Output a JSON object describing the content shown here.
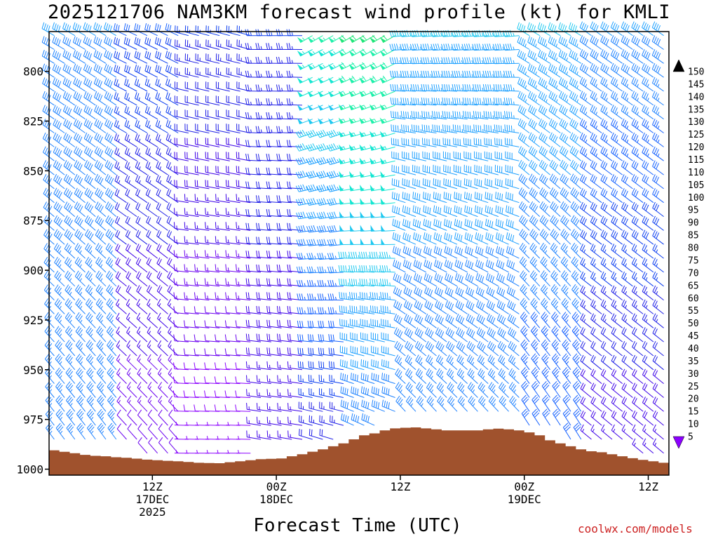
{
  "chart_data": {
    "type": "wind-profile",
    "title": "2025121706 NAM3KM forecast wind profile (kt) for KMLI",
    "xlabel": "Forecast Time (UTC)",
    "credit": "coolwx.com/models",
    "y_ticks": [
      800,
      825,
      850,
      875,
      900,
      925,
      950,
      975,
      1000
    ],
    "y_range_hpa": [
      780,
      1003
    ],
    "x_range_hours": [
      -4,
      56
    ],
    "x_ticks": [
      {
        "hour": 6,
        "lines": [
          "12Z",
          "17DEC",
          "2025"
        ]
      },
      {
        "hour": 18,
        "lines": [
          "00Z",
          "18DEC"
        ]
      },
      {
        "hour": 30,
        "lines": [
          "12Z"
        ]
      },
      {
        "hour": 42,
        "lines": [
          "00Z",
          "19DEC"
        ]
      },
      {
        "hour": 54,
        "lines": [
          "12Z"
        ]
      }
    ],
    "colorbar_levels": [
      5,
      10,
      15,
      20,
      25,
      30,
      35,
      40,
      45,
      50,
      55,
      60,
      65,
      70,
      75,
      80,
      85,
      90,
      95,
      100,
      105,
      110,
      115,
      120,
      125,
      130,
      135,
      140,
      145,
      150
    ],
    "colorbar_colors": [
      "#8c00ff",
      "#6a00f0",
      "#3c00e8",
      "#1e1ee6",
      "#0a3cf0",
      "#1460ff",
      "#1e82ff",
      "#1ea0ff",
      "#1ec8f0",
      "#14e6d2",
      "#1ef0aa",
      "#1ee678",
      "#28e63c",
      "#5aeb1e",
      "#a0f01e",
      "#dcf51e",
      "#ffff00",
      "#ffe600",
      "#ffc800",
      "#ffaa00",
      "#ff8c00",
      "#ff6e00",
      "#ff5000",
      "#ff2800",
      "#ff0000",
      "#ff0050",
      "#ff0082",
      "#ff00b4",
      "#ff00e6"
    ],
    "terrain_hpa": [
      [
        -4,
        990.5
      ],
      [
        -3,
        991.3
      ],
      [
        -2,
        992
      ],
      [
        -1,
        992.8
      ],
      [
        0,
        993.3
      ],
      [
        1,
        993.5
      ],
      [
        2,
        994
      ],
      [
        3,
        994.3
      ],
      [
        4,
        994.7
      ],
      [
        5,
        995.2
      ],
      [
        6,
        995.5
      ],
      [
        7,
        995.8
      ],
      [
        8,
        996
      ],
      [
        9,
        996.4
      ],
      [
        10,
        996.8
      ],
      [
        11,
        996.9
      ],
      [
        12,
        997
      ],
      [
        13,
        996.5
      ],
      [
        14,
        996
      ],
      [
        15,
        995.5
      ],
      [
        16,
        995
      ],
      [
        17,
        994.8
      ],
      [
        18,
        994.6
      ],
      [
        19,
        993.5
      ],
      [
        20,
        992.5
      ],
      [
        21,
        991.2
      ],
      [
        22,
        990
      ],
      [
        23,
        988.5
      ],
      [
        24,
        987
      ],
      [
        25,
        985
      ],
      [
        26,
        983
      ],
      [
        27,
        982
      ],
      [
        28,
        980.5
      ],
      [
        29,
        979.5
      ],
      [
        30,
        979.2
      ],
      [
        31,
        979
      ],
      [
        32,
        979.5
      ],
      [
        33,
        980
      ],
      [
        34,
        980.5
      ],
      [
        35,
        980.5
      ],
      [
        36,
        980.5
      ],
      [
        37,
        980.5
      ],
      [
        38,
        980
      ],
      [
        39,
        979.6
      ],
      [
        40,
        980
      ],
      [
        41,
        980.5
      ],
      [
        42,
        981.5
      ],
      [
        43,
        983
      ],
      [
        44,
        985.5
      ],
      [
        45,
        987
      ],
      [
        46,
        988.5
      ],
      [
        47,
        990
      ],
      [
        48,
        991
      ],
      [
        49,
        991.5
      ],
      [
        50,
        992.5
      ],
      [
        51,
        993.5
      ],
      [
        52,
        994.5
      ],
      [
        53,
        995.3
      ],
      [
        54,
        996
      ],
      [
        55,
        996.8
      ],
      [
        56,
        997
      ]
    ],
    "wind_regimes": [
      {
        "x_from": -4,
        "x_to": 3,
        "dir_top": 300,
        "dir_bottom": 325,
        "spd_top": 40,
        "spd_bottom": 35
      },
      {
        "x_from": 3,
        "x_to": 9,
        "dir_top": 295,
        "dir_bottom": 320,
        "spd_top": 30,
        "spd_bottom": 10
      },
      {
        "x_from": 9,
        "x_to": 16,
        "dir_top": 285,
        "dir_bottom": 270,
        "spd_top": 25,
        "spd_bottom": 5
      },
      {
        "x_from": 16,
        "x_to": 21,
        "dir_top": 270,
        "dir_bottom": 280,
        "spd_top": 25,
        "spd_bottom": 15
      },
      {
        "x_from": 21,
        "x_to": 25,
        "dir_top": 240,
        "dir_bottom": 290,
        "spd_top": 55,
        "spd_bottom": 20
      },
      {
        "x_from": 25,
        "x_to": 30,
        "dir_top": 240,
        "dir_bottom": 300,
        "spd_top": 60,
        "spd_bottom": 35
      },
      {
        "x_from": 30,
        "x_to": 42,
        "dir_top": 265,
        "dir_bottom": 325,
        "spd_top": 45,
        "spd_bottom": 35
      },
      {
        "x_from": 42,
        "x_to": 48,
        "dir_top": 300,
        "dir_bottom": 330,
        "spd_top": 45,
        "spd_bottom": 30
      },
      {
        "x_from": 48,
        "x_to": 56,
        "dir_top": 305,
        "dir_bottom": 310,
        "spd_top": 40,
        "spd_bottom": 15
      }
    ]
  }
}
